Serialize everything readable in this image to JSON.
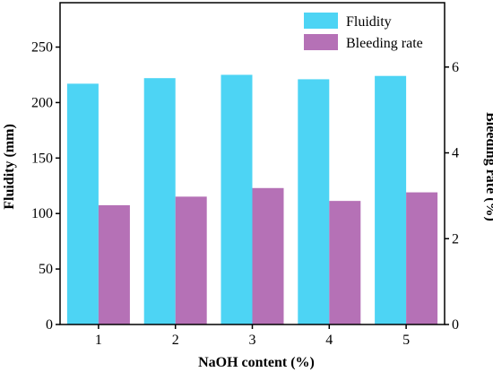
{
  "chart_data": {
    "type": "bar",
    "categories": [
      "1",
      "2",
      "3",
      "4",
      "5"
    ],
    "xlabel": "NaOH content (%)",
    "series": [
      {
        "name": "Fluidity",
        "axis": "left",
        "color": "#4dd4f4",
        "values": [
          217,
          222,
          225,
          221,
          224
        ]
      },
      {
        "name": "Bleeding rate",
        "axis": "right",
        "color": "#b571b6",
        "values": [
          2.78,
          2.98,
          3.18,
          2.88,
          3.08
        ]
      }
    ],
    "y_left": {
      "label": "Fluidity (mm)",
      "ylim": [
        0,
        290
      ],
      "ticks": [
        0,
        50,
        100,
        150,
        200,
        250
      ]
    },
    "y_right": {
      "label": "Bleeding rate (%)",
      "ylim": [
        0,
        7.5
      ],
      "ticks": [
        0,
        2,
        4,
        6
      ]
    },
    "legend_position": "top-right",
    "grid": false
  }
}
